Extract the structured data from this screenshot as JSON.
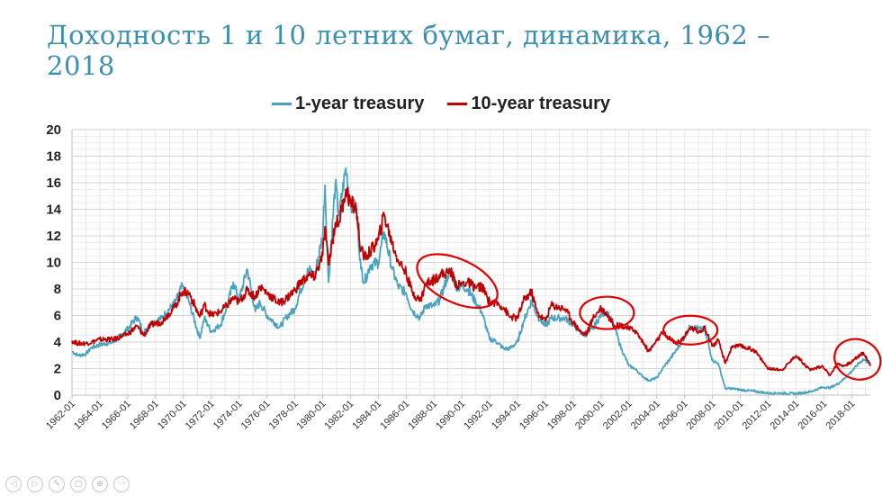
{
  "title": "Доходность 1 и 10 летних бумаг, динамика, 1962 – 2018",
  "toolbar": {
    "icons": [
      "previous-slide-icon",
      "next-slide-icon",
      "pen-icon",
      "slides-icon",
      "zoom-icon",
      "more-icon"
    ],
    "glyphs": [
      "◁",
      "▷",
      "✎",
      "▢",
      "⊕",
      "···"
    ]
  },
  "colors": {
    "one_year": "#4aa3bf",
    "ten_year": "#c00000",
    "highlight_circle": "#e00000",
    "title": "#3c8fb0"
  },
  "chart_data": {
    "type": "line",
    "title": "",
    "xlabel": "",
    "ylabel": "",
    "ylim": [
      0,
      20
    ],
    "yticks": [
      0,
      2,
      4,
      6,
      8,
      10,
      12,
      14,
      16,
      18,
      20
    ],
    "xlim": [
      "1962-01",
      "2019-05"
    ],
    "xticks": [
      "1962-01",
      "1964-01",
      "1966-01",
      "1968-01",
      "1970-01",
      "1972-01",
      "1974-01",
      "1976-01",
      "1978-01",
      "1980-01",
      "1982-01",
      "1984-01",
      "1986-01",
      "1988-01",
      "1990-01",
      "1992-01",
      "1994-01",
      "1996-01",
      "1998-01",
      "2000-01",
      "2002-01",
      "2004-01",
      "2006-01",
      "2008-01",
      "2010-01",
      "2012-01",
      "2014-01",
      "2016-01",
      "2018-01"
    ],
    "grid": true,
    "legend_position": "top",
    "series": [
      {
        "name": "1-year treasury",
        "x": [
          "1962-01",
          "1962-06",
          "1963-01",
          "1963-06",
          "1964-01",
          "1965-01",
          "1966-01",
          "1966-09",
          "1967-03",
          "1967-09",
          "1968-06",
          "1969-06",
          "1969-12",
          "1970-06",
          "1971-03",
          "1971-07",
          "1972-01",
          "1972-09",
          "1973-03",
          "1973-08",
          "1974-01",
          "1974-08",
          "1975-03",
          "1975-07",
          "1976-01",
          "1976-12",
          "1977-06",
          "1978-01",
          "1978-06",
          "1979-01",
          "1979-06",
          "1980-01",
          "1980-03",
          "1980-06",
          "1980-12",
          "1981-03",
          "1981-09",
          "1982-01",
          "1982-06",
          "1982-10",
          "1983-01",
          "1983-06",
          "1984-01",
          "1984-06",
          "1985-01",
          "1985-06",
          "1986-01",
          "1986-06",
          "1987-01",
          "1987-06",
          "1988-01",
          "1988-06",
          "1989-01",
          "1989-03",
          "1989-09",
          "1990-01",
          "1990-06",
          "1991-01",
          "1991-06",
          "1992-01",
          "1992-06",
          "1993-01",
          "1993-06",
          "1994-01",
          "1994-06",
          "1995-01",
          "1995-06",
          "1996-01",
          "1996-06",
          "1997-01",
          "1997-06",
          "1998-01",
          "1998-09",
          "1999-01",
          "1999-06",
          "2000-01",
          "2000-06",
          "2001-01",
          "2001-06",
          "2002-01",
          "2002-06",
          "2003-01",
          "2003-06",
          "2004-01",
          "2004-06",
          "2005-01",
          "2005-06",
          "2006-01",
          "2006-06",
          "2007-01",
          "2007-06",
          "2007-09",
          "2008-01",
          "2008-06",
          "2008-12",
          "2009-06",
          "2010-01",
          "2011-01",
          "2012-01",
          "2013-01",
          "2014-01",
          "2015-01",
          "2015-12",
          "2016-06",
          "2017-01",
          "2017-06",
          "2018-01",
          "2018-06",
          "2018-11",
          "2019-03",
          "2019-05"
        ],
        "values": [
          3.3,
          3.0,
          3.1,
          3.6,
          3.8,
          4.0,
          5.0,
          5.9,
          4.7,
          5.4,
          5.8,
          7.0,
          8.2,
          7.0,
          4.3,
          5.8,
          4.8,
          5.3,
          6.8,
          8.5,
          7.2,
          9.5,
          6.3,
          7.0,
          6.0,
          5.1,
          5.9,
          6.5,
          7.9,
          9.5,
          9.0,
          12.0,
          15.8,
          8.5,
          16.0,
          13.5,
          17.1,
          14.5,
          14.0,
          9.5,
          8.5,
          9.8,
          10.0,
          12.3,
          9.5,
          8.2,
          7.7,
          6.4,
          5.8,
          6.8,
          6.7,
          7.2,
          9.0,
          9.4,
          8.1,
          8.2,
          8.0,
          7.0,
          6.3,
          4.2,
          4.1,
          3.5,
          3.5,
          4.0,
          5.5,
          7.1,
          6.0,
          5.2,
          5.8,
          5.8,
          5.8,
          5.3,
          4.6,
          4.6,
          5.0,
          6.1,
          6.3,
          5.0,
          3.6,
          2.2,
          2.0,
          1.4,
          1.1,
          1.3,
          2.0,
          2.8,
          3.4,
          4.4,
          5.2,
          5.0,
          4.9,
          4.0,
          2.6,
          2.4,
          0.5,
          0.5,
          0.4,
          0.3,
          0.15,
          0.15,
          0.12,
          0.25,
          0.6,
          0.55,
          0.85,
          1.2,
          1.8,
          2.3,
          2.7,
          2.5,
          2.3
        ]
      },
      {
        "name": "10-year treasury",
        "x": [
          "1962-01",
          "1962-06",
          "1963-01",
          "1963-06",
          "1964-01",
          "1965-01",
          "1966-01",
          "1966-09",
          "1967-03",
          "1967-09",
          "1968-06",
          "1969-06",
          "1969-12",
          "1970-06",
          "1971-03",
          "1971-07",
          "1972-01",
          "1972-09",
          "1973-03",
          "1973-08",
          "1974-01",
          "1974-08",
          "1975-03",
          "1975-07",
          "1976-01",
          "1976-12",
          "1977-06",
          "1978-01",
          "1978-06",
          "1979-01",
          "1979-06",
          "1980-01",
          "1980-03",
          "1980-06",
          "1980-12",
          "1981-03",
          "1981-09",
          "1982-01",
          "1982-06",
          "1982-10",
          "1983-01",
          "1983-06",
          "1984-01",
          "1984-06",
          "1985-01",
          "1985-06",
          "1986-01",
          "1986-06",
          "1987-01",
          "1987-06",
          "1988-01",
          "1988-06",
          "1989-01",
          "1989-03",
          "1989-09",
          "1990-01",
          "1990-06",
          "1991-01",
          "1991-06",
          "1992-01",
          "1992-06",
          "1993-01",
          "1993-06",
          "1994-01",
          "1994-06",
          "1995-01",
          "1995-06",
          "1996-01",
          "1996-06",
          "1997-01",
          "1997-06",
          "1998-01",
          "1998-09",
          "1999-01",
          "1999-06",
          "2000-01",
          "2000-06",
          "2001-01",
          "2001-06",
          "2002-01",
          "2002-06",
          "2003-01",
          "2003-06",
          "2004-01",
          "2004-06",
          "2005-01",
          "2005-06",
          "2006-01",
          "2006-06",
          "2007-01",
          "2007-06",
          "2007-09",
          "2008-01",
          "2008-06",
          "2008-12",
          "2009-06",
          "2010-01",
          "2011-01",
          "2012-01",
          "2013-01",
          "2014-01",
          "2015-01",
          "2015-12",
          "2016-06",
          "2017-01",
          "2017-06",
          "2018-01",
          "2018-06",
          "2018-11",
          "2019-03",
          "2019-05"
        ],
        "values": [
          4.1,
          3.9,
          3.9,
          4.0,
          4.2,
          4.2,
          4.6,
          5.2,
          4.5,
          5.3,
          5.5,
          6.7,
          7.8,
          7.7,
          5.9,
          6.8,
          6.0,
          6.3,
          6.8,
          7.3,
          7.0,
          7.9,
          7.4,
          8.2,
          7.7,
          6.9,
          7.3,
          7.9,
          8.5,
          9.0,
          8.9,
          10.5,
          12.7,
          9.8,
          13.0,
          13.0,
          15.5,
          14.5,
          14.0,
          10.9,
          10.4,
          10.8,
          11.7,
          13.6,
          11.4,
          10.2,
          9.2,
          7.8,
          7.1,
          8.4,
          8.7,
          9.1,
          9.2,
          9.4,
          8.2,
          8.4,
          8.5,
          8.1,
          8.2,
          7.0,
          7.0,
          6.6,
          5.9,
          5.8,
          7.1,
          7.8,
          6.2,
          5.6,
          6.8,
          6.6,
          6.5,
          5.5,
          4.6,
          4.7,
          5.8,
          6.6,
          6.1,
          5.2,
          5.3,
          5.0,
          4.9,
          4.0,
          3.3,
          4.1,
          4.7,
          4.2,
          3.9,
          4.4,
          5.1,
          4.8,
          5.1,
          4.5,
          3.7,
          4.1,
          2.4,
          3.7,
          3.7,
          3.4,
          2.0,
          1.9,
          3.0,
          1.9,
          2.2,
          1.5,
          2.4,
          2.2,
          2.5,
          2.9,
          3.2,
          2.6,
          2.2
        ]
      }
    ],
    "annotations": [
      {
        "type": "ellipse",
        "x": "1989-09",
        "y": 8.6
      },
      {
        "type": "ellipse",
        "x": "2000-06",
        "y": 6.2
      },
      {
        "type": "ellipse",
        "x": "2006-06",
        "y": 4.9
      },
      {
        "type": "ellipse",
        "x": "2018-06",
        "y": 2.7
      }
    ]
  }
}
